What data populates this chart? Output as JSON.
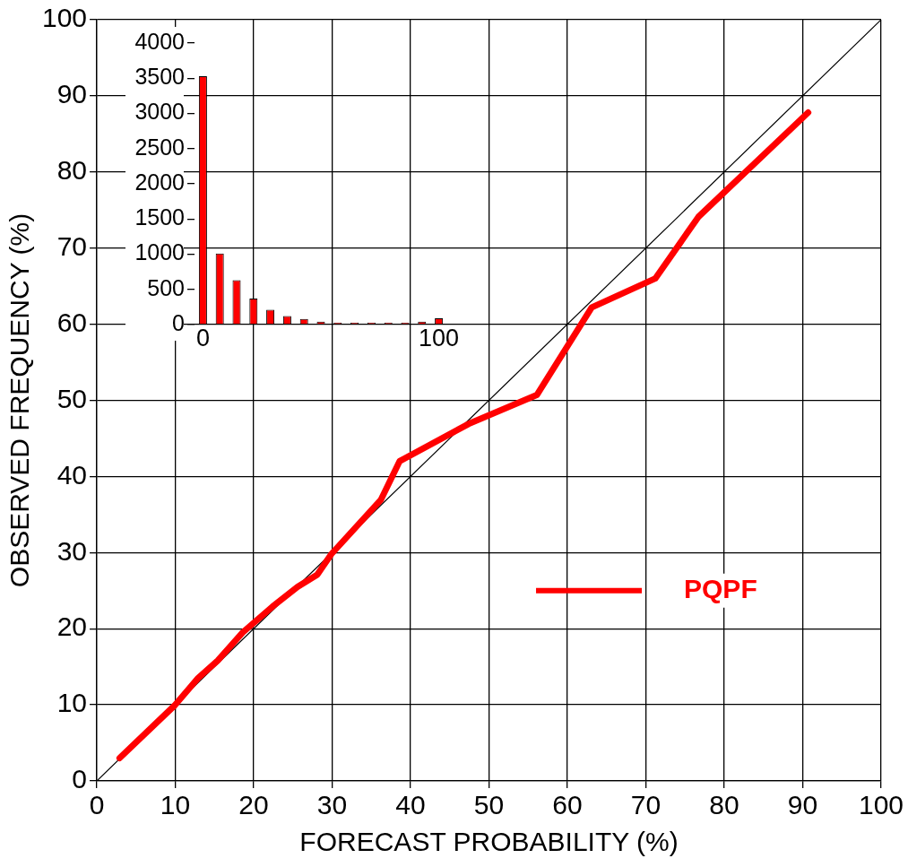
{
  "chart_data": [
    {
      "type": "line",
      "xlabel": "FORECAST PROBABILITY (%)",
      "ylabel": "OBSERVED FREQUENCY (%)",
      "xlim": [
        0,
        100
      ],
      "ylim": [
        0,
        100
      ],
      "xticks": [
        0,
        10,
        20,
        30,
        40,
        50,
        60,
        70,
        80,
        90,
        100
      ],
      "yticks": [
        0,
        10,
        20,
        30,
        40,
        50,
        60,
        70,
        80,
        90,
        100
      ],
      "grid": true,
      "legend": "right",
      "series": [
        {
          "name": "PQPF",
          "color": "#ff0000",
          "x": [
            2.9,
            10,
            12.9,
            15.4,
            18.6,
            22.4,
            25.6,
            28.1,
            29.9,
            36.2,
            38.6,
            47.4,
            56.1,
            63.1,
            71.2,
            76.7,
            90.7
          ],
          "values": [
            3.0,
            10,
            13.5,
            15.8,
            19.5,
            22.9,
            25.5,
            27.1,
            29.8,
            36.9,
            42.0,
            46.9,
            50.7,
            62.2,
            66.0,
            74.1,
            87.8
          ]
        },
        {
          "type": "line",
          "color": "#000000",
          "x": [
            0,
            100
          ],
          "values": [
            0,
            100
          ]
        }
      ]
    },
    {
      "type": "bar",
      "categories": [
        "0",
        null,
        null,
        null,
        null,
        null,
        null,
        null,
        null,
        null,
        null,
        null,
        null,
        null,
        "100"
      ],
      "values": [
        3530,
        1010,
        630,
        370,
        210,
        120,
        80,
        40,
        30,
        30,
        30,
        30,
        30,
        40,
        90
      ],
      "color": "#ff0000",
      "ylim": [
        0,
        4000
      ],
      "yticks": [
        0,
        500,
        1000,
        1500,
        2000,
        2500,
        3000,
        3500,
        4000
      ]
    }
  ]
}
